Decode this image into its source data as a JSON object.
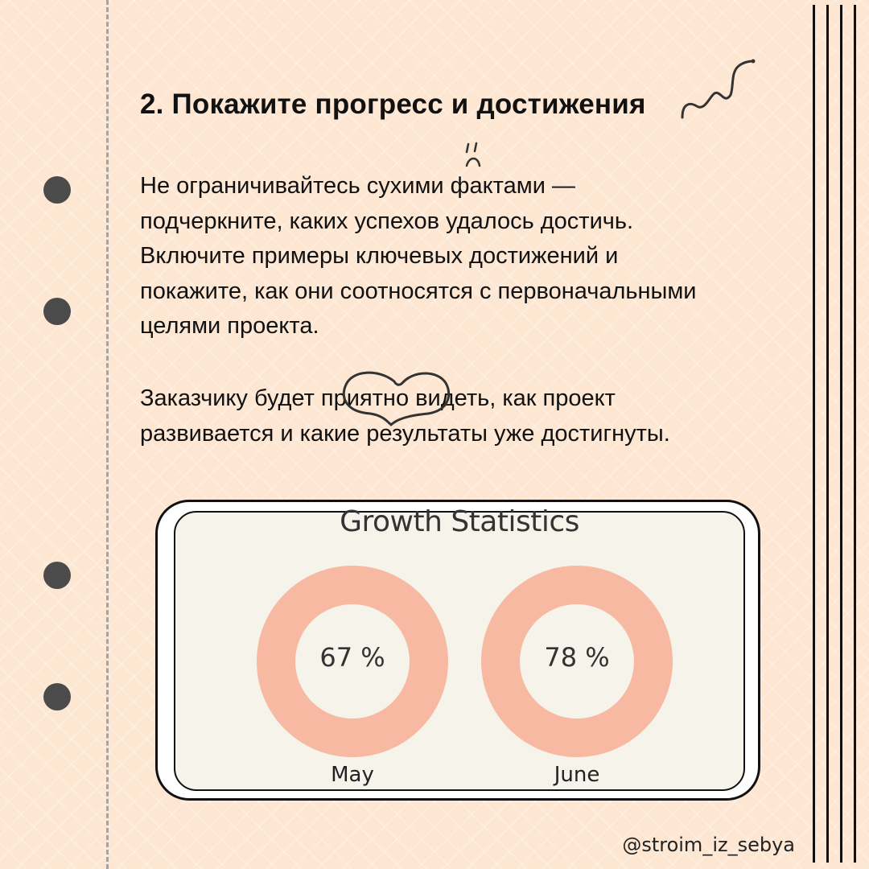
{
  "heading": "2. Покажите прогресс и достижения",
  "paragraph1": "Не ограничивайтесь сухими фактами —\nподчеркните, каких успехов удалось достичь.\nВключите примеры ключевых достижений и\nпокажите, как они соотносятся с первоначальными\nцелями проекта.",
  "paragraph2": "Заказчику будет приятно видеть, как проект\nразвивается и какие результаты уже достигнуты.",
  "handle": "@stroim_iz_sebya",
  "colors": {
    "background": "#fde6d2",
    "accent": "#ef5a2f",
    "accent_light": "#f7b9a1",
    "hole": "#4b4b4b"
  },
  "icons": [
    "squiggle-doodle-icon",
    "sad-face-doodle-icon",
    "heart-outline-doodle-icon"
  ],
  "chart_data": {
    "type": "pie",
    "title": "Growth Statistics",
    "categories": [
      "May",
      "June"
    ],
    "labels": [
      "67 %",
      "78 %"
    ],
    "values": [
      67,
      78
    ]
  }
}
